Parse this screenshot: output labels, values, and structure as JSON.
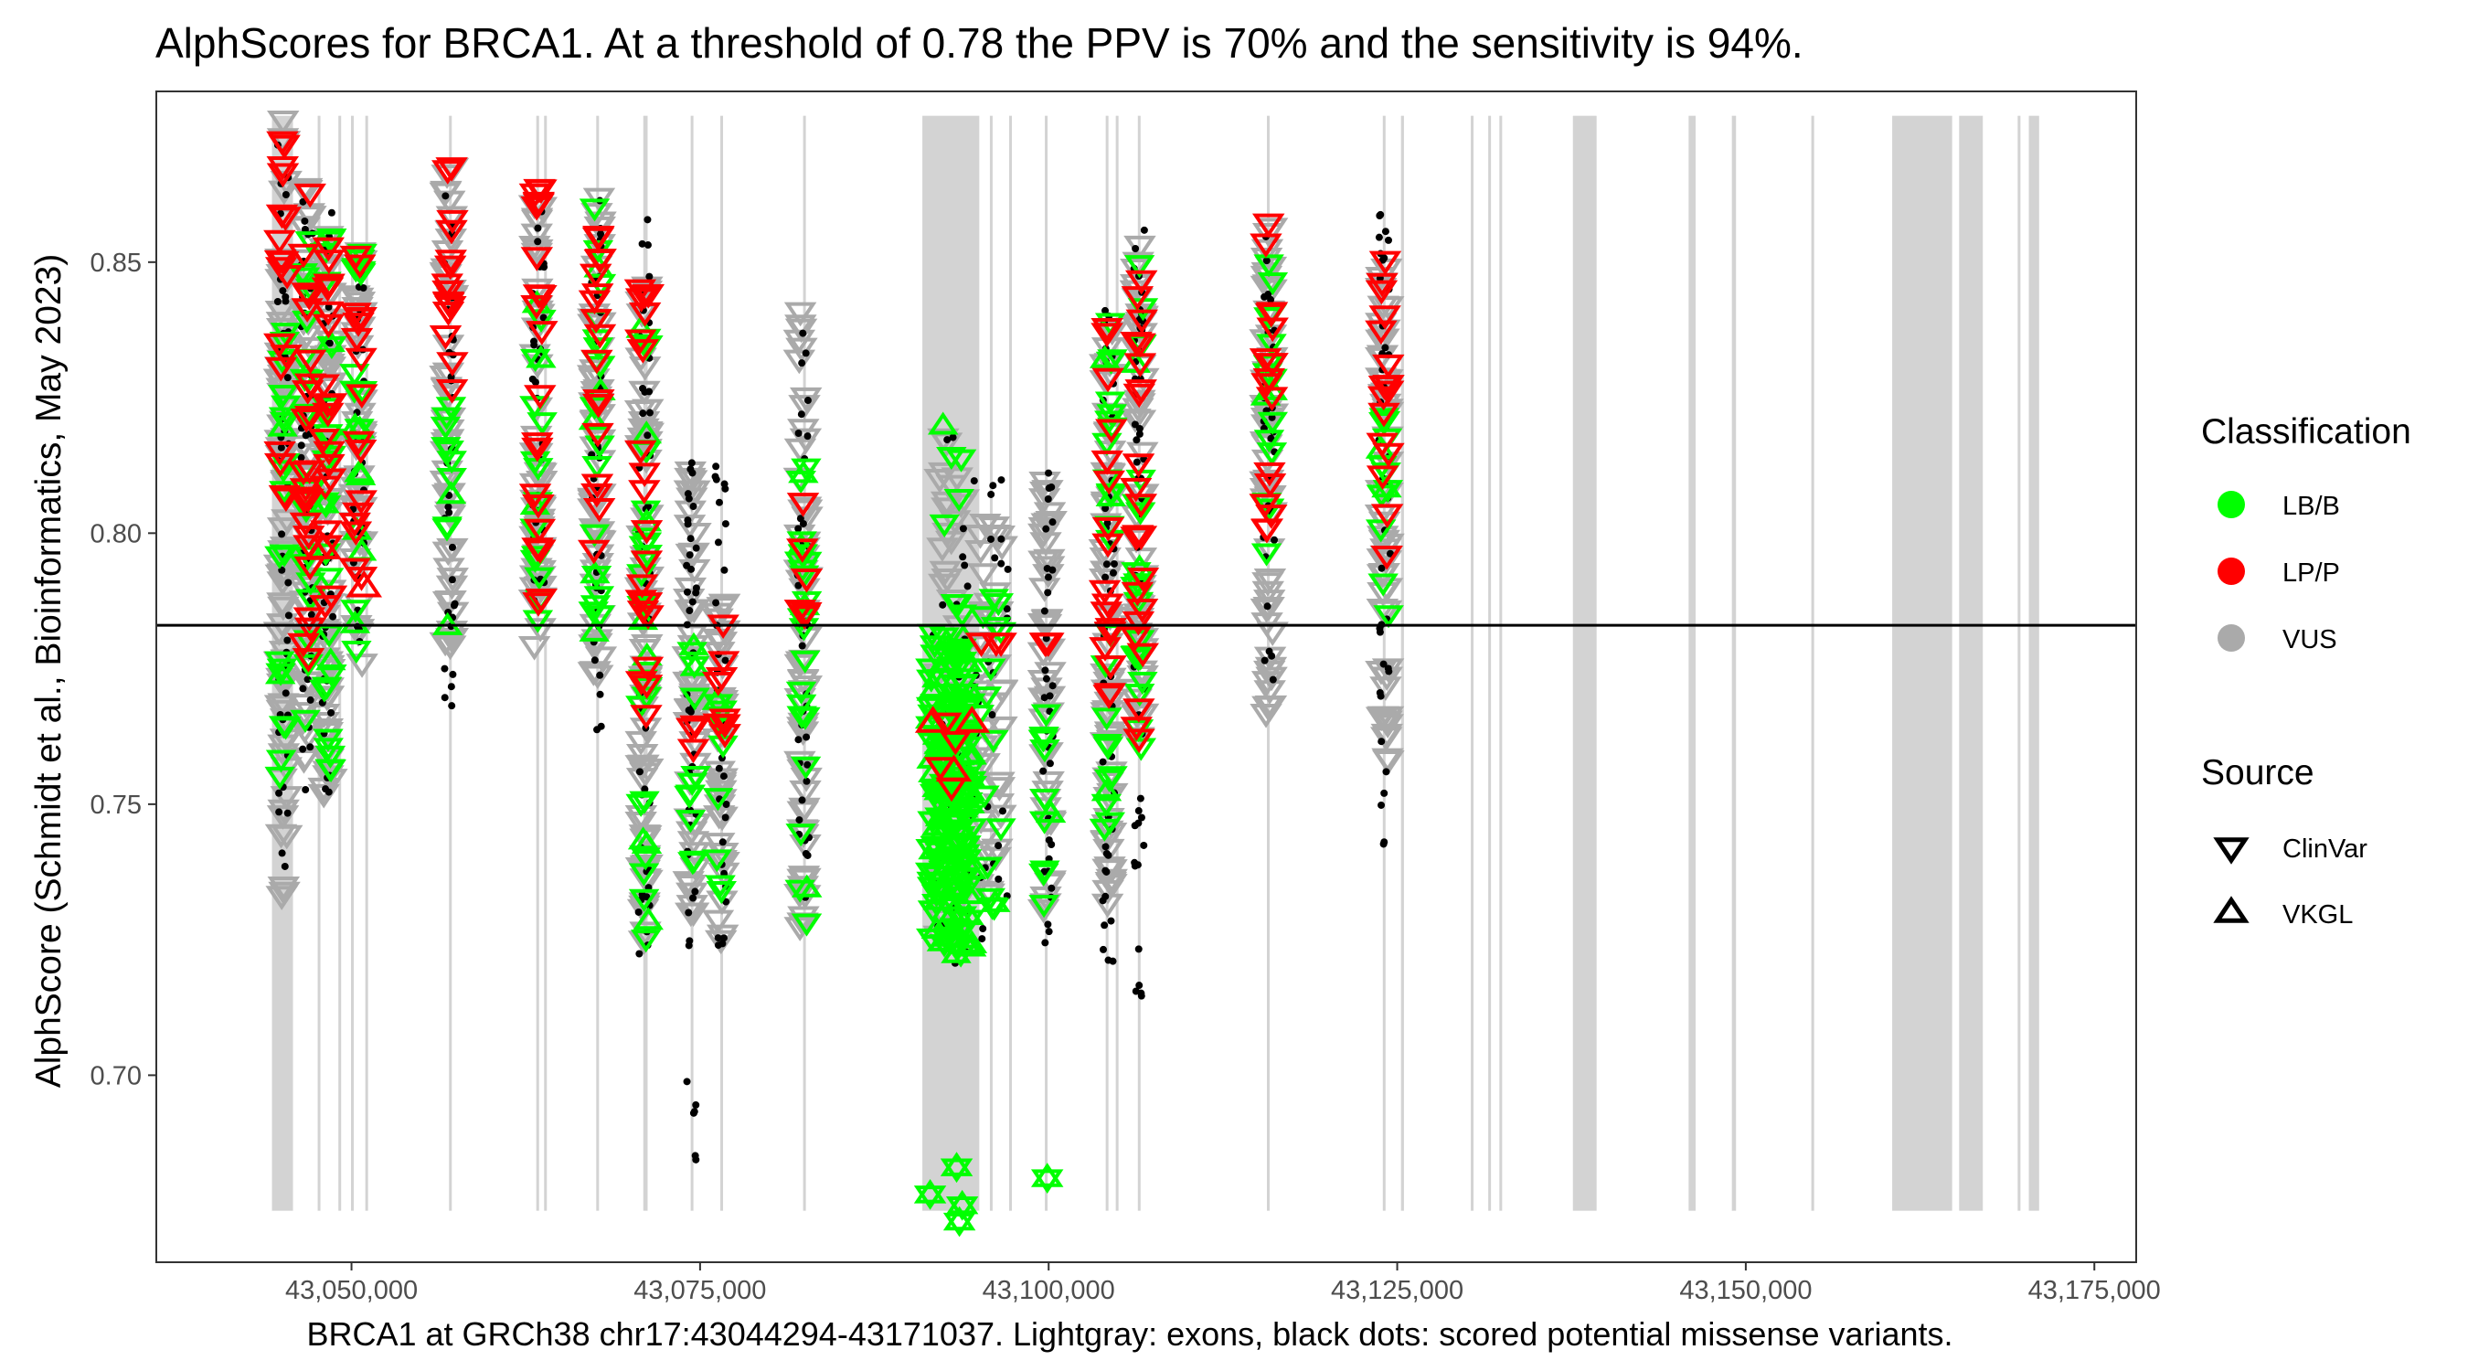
{
  "chart_data": {
    "type": "scatter",
    "title": "AlphScores for BRCA1. At a threshold of 0.78 the PPV is 70% and the sensitivity is 94%.",
    "xlabel": "BRCA1 at GRCh38 chr17:43044294-43171037. Lightgray: exons, black dots: scored potential missense variants.",
    "ylabel": "AlphScore (Schmidt et al., Bioinformatics, May 2023)",
    "xlim": [
      43036000,
      43178000
    ],
    "ylim": [
      0.6655,
      0.8815
    ],
    "x_ticks": [
      43050000,
      43075000,
      43100000,
      43125000,
      43150000,
      43175000
    ],
    "x_tick_labels": [
      "43,050,000",
      "43,075,000",
      "43,100,000",
      "43,125,000",
      "43,150,000",
      "43,175,000"
    ],
    "y_ticks": [
      0.7,
      0.75,
      0.8,
      0.85
    ],
    "y_tick_labels": [
      "0.70",
      "0.75",
      "0.80",
      "0.85"
    ],
    "threshold": 0.783,
    "grid": false,
    "legend_position": "right",
    "colors": {
      "LB/B": "#00ff00",
      "LP/P": "#ff0000",
      "VUS": "#aaaaaa",
      "exon": "#d3d3d3",
      "missense_dot": "#000000",
      "threshold_line": "#000000"
    },
    "exon_regions": [
      [
        43044294,
        43045802
      ],
      [
        43047642,
        43047703
      ],
      [
        43049120,
        43049194
      ],
      [
        43050044,
        43050082
      ],
      [
        43051062,
        43051117
      ],
      [
        43057051,
        43057135
      ],
      [
        43063332,
        43063373
      ],
      [
        43063873,
        43063951
      ],
      [
        43067607,
        43067695
      ],
      [
        43070927,
        43071238
      ],
      [
        43074330,
        43074521
      ],
      [
        43076487,
        43076614
      ],
      [
        43082403,
        43082575
      ],
      [
        43090943,
        43095025
      ],
      [
        43095845,
        43095922
      ],
      [
        43097243,
        43097289
      ],
      [
        43099774,
        43099880
      ],
      [
        43104121,
        43104261
      ],
      [
        43104867,
        43104956
      ],
      [
        43106455,
        43106533
      ],
      [
        43115725,
        43115779
      ],
      [
        43124016,
        43124115
      ],
      [
        43125270,
        43125483
      ],
      [
        43130350,
        43130400
      ],
      [
        43131600,
        43131650
      ],
      [
        43132400,
        43132450
      ],
      [
        43137600,
        43139300
      ],
      [
        43145900,
        43146400
      ],
      [
        43149000,
        43149300
      ],
      [
        43154700,
        43154900
      ],
      [
        43160500,
        43164800
      ],
      [
        43165300,
        43167000
      ],
      [
        43169500,
        43169700
      ],
      [
        43170300,
        43171037
      ]
    ],
    "legend": {
      "classification": {
        "title": "Classification",
        "entries": [
          {
            "label": "LB/B",
            "color": "#00ff00"
          },
          {
            "label": "LP/P",
            "color": "#ff0000"
          },
          {
            "label": "VUS",
            "color": "#aaaaaa"
          }
        ]
      },
      "source": {
        "title": "Source",
        "entries": [
          {
            "label": "ClinVar",
            "shape": "triangle-down"
          },
          {
            "label": "VKGL",
            "shape": "triangle-up"
          }
        ]
      }
    },
    "clusters": [
      {
        "x": 43045100,
        "vus": [
          0.732,
          0.877
        ],
        "lb": [
          0.755,
          0.838
        ],
        "lp": [
          0.805,
          0.873
        ],
        "black": [
          0.735,
          0.875
        ]
      },
      {
        "x": 43046800,
        "vus": [
          0.757,
          0.868
        ],
        "lb": [
          0.765,
          0.855
        ],
        "lp": [
          0.772,
          0.866
        ],
        "black": [
          0.752,
          0.868
        ]
      },
      {
        "x": 43048300,
        "vus": [
          0.752,
          0.862
        ],
        "lb": [
          0.752,
          0.858
        ],
        "lp": [
          0.783,
          0.857
        ],
        "black": [
          0.75,
          0.864
        ]
      },
      {
        "x": 43050500,
        "vus": [
          0.776,
          0.855
        ],
        "lb": [
          0.778,
          0.855
        ],
        "lp": [
          0.79,
          0.855
        ],
        "black": [
          0.776,
          0.856
        ]
      },
      {
        "x": 43057000,
        "vus": [
          0.778,
          0.868
        ],
        "lb": [
          0.782,
          0.826
        ],
        "lp": [
          0.81,
          0.868
        ],
        "black": [
          0.768,
          0.866
        ]
      },
      {
        "x": 43063400,
        "vus": [
          0.779,
          0.862
        ],
        "lb": [
          0.784,
          0.845
        ],
        "lp": [
          0.785,
          0.866
        ],
        "black": [
          0.776,
          0.865
        ]
      },
      {
        "x": 43067600,
        "vus": [
          0.773,
          0.864
        ],
        "lb": [
          0.778,
          0.862
        ],
        "lp": [
          0.797,
          0.862
        ],
        "black": [
          0.762,
          0.864
        ]
      },
      {
        "x": 43071000,
        "vus": [
          0.725,
          0.848
        ],
        "lb": [
          0.724,
          0.84
        ],
        "lp": [
          0.766,
          0.847
        ],
        "black": [
          0.722,
          0.86
        ]
      },
      {
        "x": 43074400,
        "vus": [
          0.724,
          0.812
        ],
        "lb": [
          0.735,
          0.78
        ],
        "lp": [
          0.76,
          0.765
        ],
        "black": [
          0.681,
          0.815
        ]
      },
      {
        "x": 43076500,
        "vus": [
          0.724,
          0.79
        ],
        "lb": [
          0.73,
          0.77
        ],
        "lp": [
          0.757,
          0.788
        ],
        "black": [
          0.722,
          0.813
        ]
      },
      {
        "x": 43082400,
        "vus": [
          0.726,
          0.841
        ],
        "lb": [
          0.726,
          0.817
        ],
        "lp": [
          0.785,
          0.808
        ],
        "black": [
          0.722,
          0.84
        ]
      },
      {
        "x": 43093000,
        "vus": [
          0.72,
          0.82
        ],
        "lb": [
          0.72,
          0.82
        ],
        "lp": [
          0.752,
          0.768
        ],
        "black": [
          0.717,
          0.823
        ]
      },
      {
        "x": 43095800,
        "vus": [
          0.727,
          0.805
        ],
        "lb": [
          0.728,
          0.79
        ],
        "lp": [
          0.78,
          0.78
        ],
        "black": [
          0.725,
          0.81
        ]
      },
      {
        "x": 43099900,
        "vus": [
          0.726,
          0.81
        ],
        "lb": [
          0.73,
          0.77
        ],
        "lp": [
          0.78,
          0.78
        ],
        "black": [
          0.722,
          0.818
        ]
      },
      {
        "x": 43104300,
        "vus": [
          0.73,
          0.84
        ],
        "lb": [
          0.74,
          0.84
        ],
        "lp": [
          0.77,
          0.84
        ],
        "black": [
          0.72,
          0.842
        ]
      },
      {
        "x": 43106500,
        "vus": [
          0.76,
          0.854
        ],
        "lb": [
          0.76,
          0.85
        ],
        "lp": [
          0.762,
          0.852
        ],
        "black": [
          0.714,
          0.856
        ]
      },
      {
        "x": 43115800,
        "vus": [
          0.765,
          0.858
        ],
        "lb": [
          0.79,
          0.85
        ],
        "lp": [
          0.797,
          0.858
        ],
        "black": [
          0.77,
          0.859
        ]
      },
      {
        "x": 43124100,
        "vus": [
          0.758,
          0.855
        ],
        "lb": [
          0.785,
          0.835
        ],
        "lp": [
          0.793,
          0.855
        ],
        "black": [
          0.74,
          0.859
        ]
      }
    ],
    "outliers_lb": [
      [
        43091500,
        0.678
      ],
      [
        43093400,
        0.683
      ],
      [
        43093800,
        0.676
      ],
      [
        43093600,
        0.673
      ],
      [
        43099900,
        0.681
      ]
    ],
    "vkgl_lp": [
      [
        43091700,
        0.765
      ],
      [
        43093200,
        0.756
      ],
      [
        43094500,
        0.765
      ],
      [
        43050900,
        0.79
      ],
      [
        43048000,
        0.797
      ]
    ]
  }
}
